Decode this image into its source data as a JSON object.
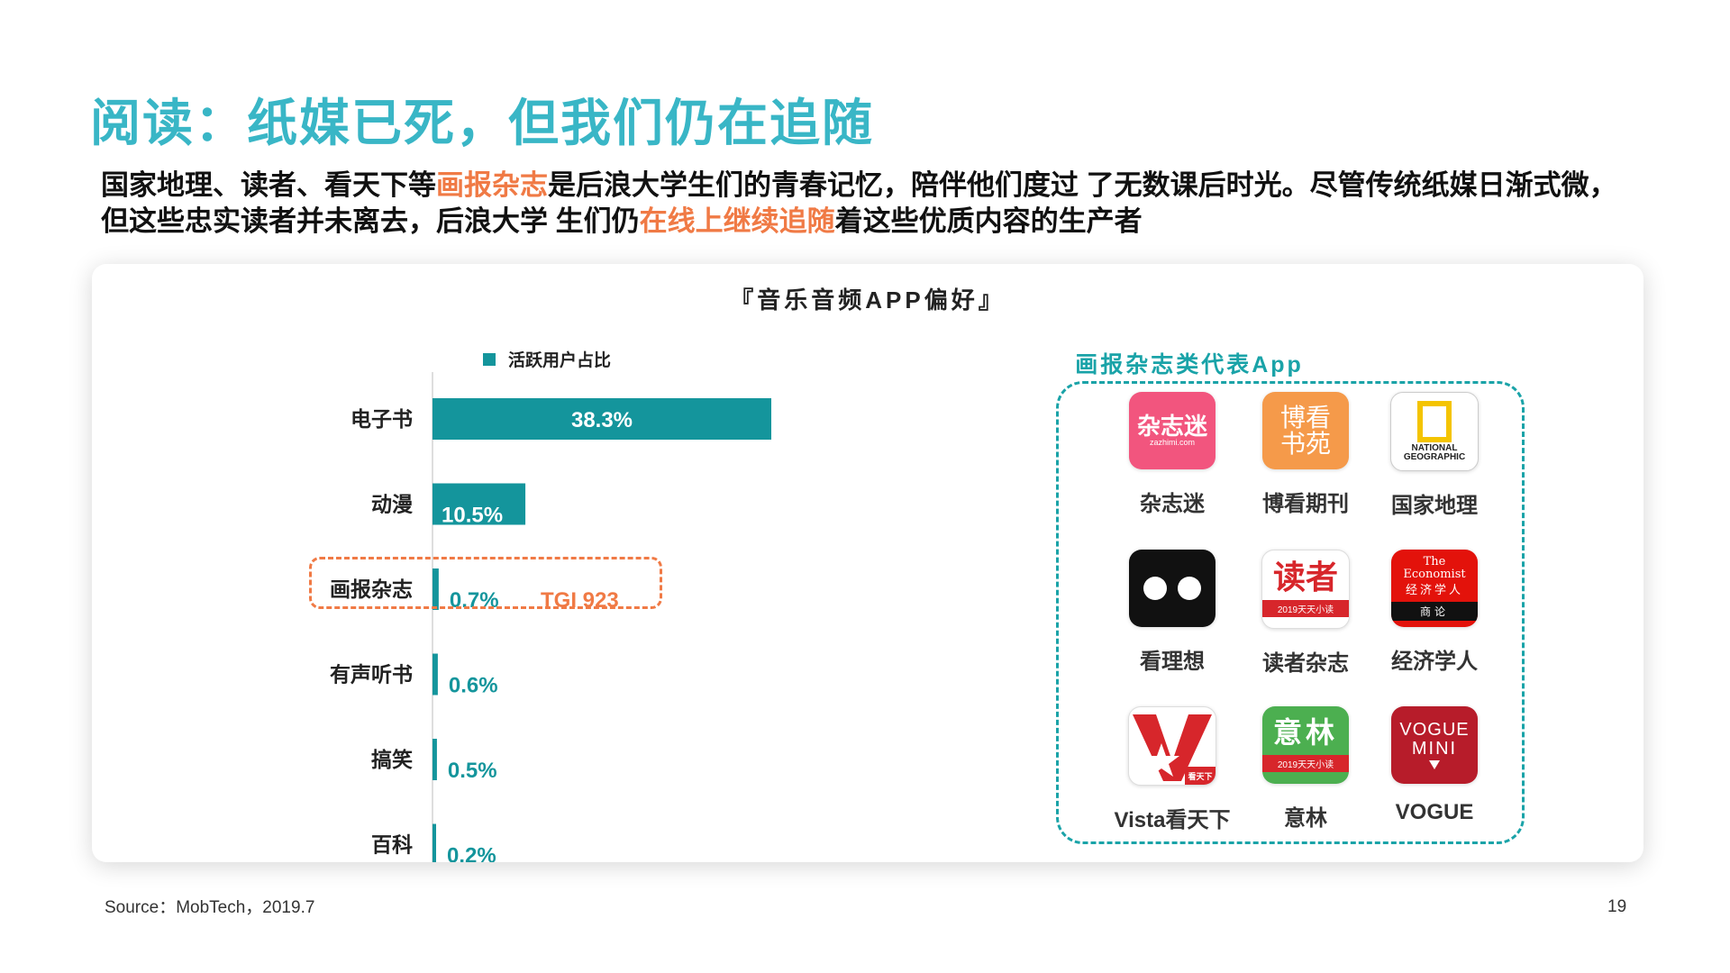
{
  "title": "阅读：纸媒已死，但我们仍在追随",
  "subtitle": {
    "part1": "国家地理、读者、看天下等",
    "hl1": "画报杂志",
    "part2": "是后浪大学生们的青春记忆，陪伴他们度过 了无数课后时光。尽管传统纸媒日渐式微，但这些忠实读者并未离去，后浪大学 生们仍",
    "hl2": "在线上继续追随",
    "part3": "着这些优质内容的生产者"
  },
  "chart_data": {
    "type": "bar",
    "orientation": "horizontal",
    "title": "『音乐音频APP偏好』",
    "categories": [
      "电子书",
      "动漫",
      "画报杂志",
      "有声听书",
      "搞笑",
      "百科"
    ],
    "series": [
      {
        "name": "活跃用户占比",
        "values": [
          38.3,
          10.5,
          0.7,
          0.6,
          0.5,
          0.2
        ]
      }
    ],
    "value_labels": [
      "38.3%",
      "10.5%",
      "0.7%",
      "0.6%",
      "0.5%",
      "0.2%"
    ],
    "annotation": "TGI 923",
    "highlight_category": "画报杂志",
    "xlim": [
      0,
      38.3
    ],
    "legend_position": "top",
    "grid": false,
    "colors": {
      "bar": "#14959C",
      "label_inside": "#ffffff",
      "label_outside": "#14959C",
      "annotation": "#F07A45"
    }
  },
  "apps": {
    "title": "画报杂志类代表App",
    "items": [
      {
        "name": "杂志迷",
        "icon": "zazhimi-icon",
        "icon_text": "杂志迷",
        "icon_sub": "zazhimi.com",
        "bg": "#F2557E"
      },
      {
        "name": "博看期刊",
        "icon": "bookan-icon",
        "icon_text": "博看书苑",
        "bg": "#F59A4A"
      },
      {
        "name": "国家地理",
        "icon": "national-geographic-icon",
        "icon_text": "NATIONAL GEOGRAPHIC",
        "bg": "#ffffff"
      },
      {
        "name": "看理想",
        "icon": "kanlixiang-icon",
        "bg": "#111111"
      },
      {
        "name": "读者杂志",
        "icon": "duzhe-icon",
        "icon_text": "读者",
        "icon_sub": "2019天天小读",
        "bg": "#ffffff"
      },
      {
        "name": "经济学人",
        "icon": "economist-icon",
        "icon_text": "The Economist",
        "icon_text2": "经济学人",
        "icon_sub": "商论",
        "bg": "#E3120B"
      },
      {
        "name": "Vista看天下",
        "icon": "vista-icon",
        "icon_sub": "看天下",
        "bg": "#ffffff"
      },
      {
        "name": "意林",
        "icon": "yilin-icon",
        "icon_text": "意林",
        "icon_sub": "2019天天小读",
        "bg": "#4CAF50"
      },
      {
        "name": "VOGUE",
        "icon": "vogue-mini-icon",
        "icon_text": "VOGUE",
        "icon_text2": "MINI",
        "bg": "#B71C2A"
      }
    ]
  },
  "source": "Source：MobTech，2019.7",
  "page_number": "19"
}
